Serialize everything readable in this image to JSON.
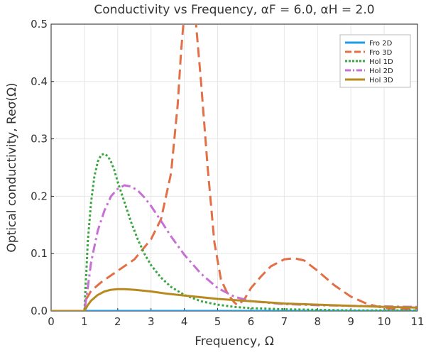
{
  "chart_data": {
    "type": "line",
    "title": "Conductivity vs Frequency, αF = 6.0, αH = 2.0",
    "xlabel": "Frequency, Ω",
    "ylabel": "Optical conductivity, Reσ(Ω)",
    "xlim": [
      0,
      11
    ],
    "ylim": [
      0,
      0.5
    ],
    "xticks": [
      0,
      1,
      2,
      3,
      4,
      5,
      6,
      7,
      8,
      9,
      10,
      11
    ],
    "xtick_labels": [
      "0",
      "1",
      "2",
      "3",
      "4",
      "5",
      "6",
      "7",
      "8",
      "9",
      "10",
      "11"
    ],
    "yticks": [
      0,
      0.1,
      0.2,
      0.3,
      0.4,
      0.5
    ],
    "ytick_labels": [
      "0.0",
      "0.1",
      "0.2",
      "0.3",
      "0.4",
      "0.5"
    ],
    "grid": true,
    "legend_position": "top-right",
    "series": [
      {
        "name": "Fro 2D",
        "color": "#1f9be6",
        "dash": "solid",
        "x": [
          0,
          0.5,
          1,
          2,
          3,
          4,
          5,
          6,
          7,
          8,
          9,
          10,
          11
        ],
        "y": [
          0,
          0,
          0,
          0,
          0,
          0,
          0,
          0,
          0,
          0,
          0,
          0,
          0
        ]
      },
      {
        "name": "Fro 3D",
        "color": "#e26f46",
        "dash": "long-dash",
        "x": [
          0,
          0.5,
          1.0,
          1.05,
          1.2,
          1.5,
          2.0,
          2.5,
          3.0,
          3.3,
          3.6,
          3.8,
          3.9,
          4.0,
          4.1,
          4.2,
          4.35,
          4.5,
          4.7,
          4.9,
          5.1,
          5.3,
          5.5,
          5.6,
          5.8,
          6.0,
          6.3,
          6.6,
          7.0,
          7.3,
          7.6,
          8.0,
          8.5,
          9.0,
          9.5,
          10.0,
          10.5,
          11.0
        ],
        "y": [
          0,
          0,
          0,
          0.02,
          0.035,
          0.05,
          0.07,
          0.09,
          0.125,
          0.16,
          0.24,
          0.36,
          0.45,
          0.52,
          0.56,
          0.55,
          0.5,
          0.4,
          0.25,
          0.12,
          0.055,
          0.03,
          0.015,
          0.01,
          0.02,
          0.04,
          0.06,
          0.078,
          0.09,
          0.092,
          0.088,
          0.07,
          0.045,
          0.025,
          0.012,
          0.005,
          0.003,
          0.004
        ]
      },
      {
        "name": "Hol 1D",
        "color": "#3ba641",
        "dash": "dot",
        "x": [
          0,
          0.5,
          0.95,
          1.0,
          1.05,
          1.1,
          1.2,
          1.3,
          1.4,
          1.5,
          1.6,
          1.7,
          1.8,
          1.9,
          2.0,
          2.2,
          2.4,
          2.6,
          2.8,
          3.0,
          3.3,
          3.6,
          4.0,
          4.5,
          5.0,
          5.5,
          6.0,
          7.0,
          8.0,
          9.0,
          10.0,
          11.0
        ],
        "y": [
          0,
          0,
          0,
          0,
          0.06,
          0.12,
          0.19,
          0.235,
          0.26,
          0.272,
          0.274,
          0.27,
          0.26,
          0.245,
          0.225,
          0.19,
          0.155,
          0.125,
          0.1,
          0.08,
          0.058,
          0.042,
          0.028,
          0.017,
          0.011,
          0.007,
          0.005,
          0.003,
          0.002,
          0.001,
          0.001,
          0.001
        ]
      },
      {
        "name": "Hol 2D",
        "color": "#c76fd4",
        "dash": "dash-dot",
        "x": [
          0,
          0.5,
          0.95,
          1.0,
          1.1,
          1.2,
          1.4,
          1.6,
          1.8,
          2.0,
          2.2,
          2.4,
          2.6,
          2.8,
          3.0,
          3.3,
          3.6,
          4.0,
          4.5,
          5.0,
          5.5,
          6.0,
          7.0,
          8.0,
          9.0,
          10.0,
          11.0
        ],
        "y": [
          0,
          0,
          0,
          0,
          0.04,
          0.085,
          0.14,
          0.175,
          0.2,
          0.213,
          0.219,
          0.217,
          0.21,
          0.198,
          0.183,
          0.157,
          0.13,
          0.098,
          0.065,
          0.04,
          0.025,
          0.017,
          0.012,
          0.01,
          0.009,
          0.008,
          0.007
        ]
      },
      {
        "name": "Hol 3D",
        "color": "#b68a1f",
        "dash": "solid",
        "x": [
          0,
          0.5,
          0.95,
          1.0,
          1.1,
          1.2,
          1.4,
          1.6,
          1.8,
          2.0,
          2.2,
          2.5,
          3.0,
          3.5,
          4.0,
          5.0,
          6.0,
          7.0,
          8.0,
          9.0,
          10.0,
          11.0
        ],
        "y": [
          0,
          0,
          0,
          0,
          0.01,
          0.018,
          0.028,
          0.034,
          0.037,
          0.038,
          0.038,
          0.037,
          0.034,
          0.03,
          0.027,
          0.021,
          0.017,
          0.013,
          0.011,
          0.009,
          0.007,
          0.006
        ]
      }
    ]
  }
}
